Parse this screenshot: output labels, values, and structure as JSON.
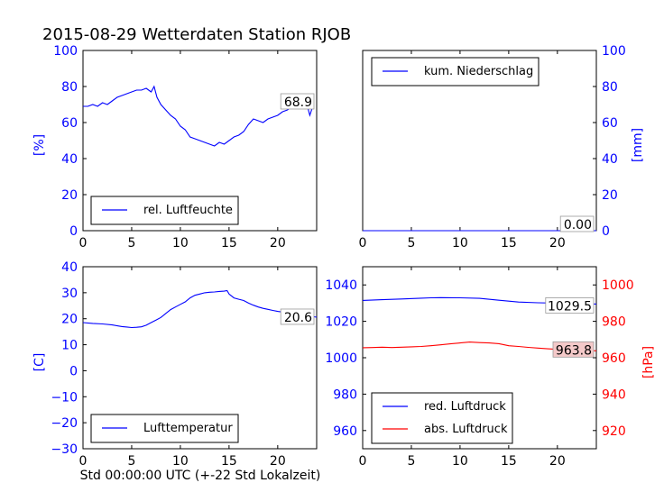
{
  "page": {
    "title": "2015-08-29 Wetterdaten Station RJOB",
    "xlabel": "Std 00:00:00 UTC (+-22 Std Lokalzeit)"
  },
  "colors": {
    "axis": "#0000ff",
    "pressure_rel": "#0000ff",
    "pressure_abs": "#ff0000",
    "tick_text_left": "#0000ff",
    "tick_text_right_pressure": "#ff0000"
  },
  "chart_data": [
    {
      "id": "humidity",
      "type": "line",
      "ylabel": "[%]",
      "xlim": [
        0,
        24
      ],
      "ylim": [
        0,
        100
      ],
      "xticks": [
        "0",
        "5",
        "10",
        "15",
        "20"
      ],
      "yticks": [
        "0",
        "20",
        "40",
        "60",
        "80",
        "100"
      ],
      "series": [
        {
          "name": "rel. Luftfeuchte",
          "x": [
            0,
            0.5,
            1,
            1.5,
            2,
            2.5,
            3,
            3.5,
            4,
            4.5,
            5,
            5.5,
            6,
            6.5,
            7,
            7.3,
            7.6,
            8,
            8.5,
            9,
            9.5,
            10,
            10.5,
            11,
            11.5,
            12,
            12.5,
            13,
            13.5,
            14,
            14.5,
            15,
            15.5,
            16,
            16.5,
            17,
            17.5,
            18,
            18.5,
            19,
            19.5,
            20,
            20.5,
            21,
            21.5,
            22,
            22.5,
            23,
            23.3,
            23.6
          ],
          "values": [
            69,
            69,
            70,
            69,
            71,
            70,
            72,
            74,
            75,
            76,
            77,
            78,
            78,
            79,
            77,
            80,
            74,
            70,
            67,
            64,
            62,
            58,
            56,
            52,
            51,
            50,
            49,
            48,
            47,
            49,
            48,
            50,
            52,
            53,
            55,
            59,
            62,
            61,
            60,
            62,
            63,
            64,
            66,
            67,
            69,
            70,
            71,
            70,
            64,
            69
          ]
        }
      ],
      "annotation": "68.9",
      "legend": "lower-left"
    },
    {
      "id": "precip",
      "type": "line",
      "ylabel": "[mm]",
      "xlim": [
        0,
        24
      ],
      "ylim": [
        0,
        100
      ],
      "xticks": [
        "0",
        "5",
        "10",
        "15",
        "20"
      ],
      "yticks": [
        "0",
        "20",
        "40",
        "60",
        "80",
        "100"
      ],
      "series": [
        {
          "name": "kum. Niederschlag",
          "x": [
            0,
            24
          ],
          "values": [
            0,
            0
          ]
        }
      ],
      "annotation": "0.00",
      "legend": "upper-left",
      "y_axis_side": "right"
    },
    {
      "id": "temperature",
      "type": "line",
      "ylabel": "[C]",
      "xlim": [
        0,
        24
      ],
      "ylim": [
        -30,
        40
      ],
      "xticks": [
        "0",
        "5",
        "10",
        "15",
        "20"
      ],
      "yticks": [
        "−30",
        "−20",
        "−10",
        "0",
        "10",
        "20",
        "30",
        "40"
      ],
      "series": [
        {
          "name": "Lufttemperatur",
          "x": [
            0,
            1,
            2,
            3,
            4,
            4.5,
            5,
            5.5,
            6,
            6.5,
            7,
            7.5,
            8,
            8.5,
            9,
            9.5,
            10,
            10.5,
            11,
            11.5,
            12,
            12.5,
            13,
            13.5,
            14,
            14.5,
            14.8,
            15,
            15.5,
            16,
            16.5,
            17,
            17.5,
            18,
            18.5,
            19,
            19.5,
            20,
            21,
            22,
            23,
            24
          ],
          "values": [
            18.5,
            18.2,
            18,
            17.6,
            17,
            16.8,
            16.6,
            16.7,
            16.9,
            17.5,
            18.5,
            19.5,
            20.5,
            22,
            23.5,
            24.5,
            25.5,
            26.5,
            28,
            29,
            29.5,
            30,
            30.2,
            30.3,
            30.5,
            30.6,
            30.8,
            29.5,
            28,
            27.5,
            27,
            26,
            25.2,
            24.5,
            24,
            23.6,
            23.2,
            22.8,
            22.3,
            21.8,
            21.2,
            20.6
          ]
        }
      ],
      "annotation": "20.6",
      "legend": "lower-left"
    },
    {
      "id": "pressure",
      "type": "line",
      "ylabel_right": "[hPa]",
      "xlim": [
        0,
        24
      ],
      "ylim_left": [
        950,
        1050
      ],
      "ylim_right": [
        910,
        1010
      ],
      "xticks": [
        "0",
        "5",
        "10",
        "15",
        "20"
      ],
      "yticks_left": [
        "960",
        "980",
        "1000",
        "1020",
        "1040"
      ],
      "yticks_right": [
        "920",
        "940",
        "960",
        "980",
        "1000"
      ],
      "series": [
        {
          "name": "red. Luftdruck",
          "axis": "left",
          "x": [
            0,
            2,
            4,
            6,
            7,
            8,
            10,
            12,
            14,
            16,
            18,
            20,
            22,
            24
          ],
          "values": [
            1031.5,
            1031.9,
            1032.3,
            1032.7,
            1032.9,
            1033,
            1032.9,
            1032.6,
            1031.6,
            1030.6,
            1030.2,
            1030,
            1029.8,
            1029.5
          ]
        },
        {
          "name": "abs. Luftdruck",
          "axis": "right",
          "x": [
            0,
            1,
            2,
            3,
            4,
            5,
            6,
            7,
            8,
            9,
            10,
            11,
            12,
            13,
            14,
            15,
            16,
            17,
            18,
            19,
            20,
            21,
            22,
            23,
            24
          ],
          "values": [
            965.5,
            965.6,
            965.8,
            965.6,
            965.8,
            966,
            966.2,
            966.6,
            967.1,
            967.6,
            968.1,
            968.6,
            968.3,
            968.1,
            967.7,
            966.6,
            966.2,
            965.7,
            965.3,
            964.9,
            964.6,
            964.3,
            964.1,
            963.9,
            963.8
          ]
        }
      ],
      "annotations": [
        "1029.5",
        "963.8"
      ],
      "legend": "lower-left"
    }
  ]
}
